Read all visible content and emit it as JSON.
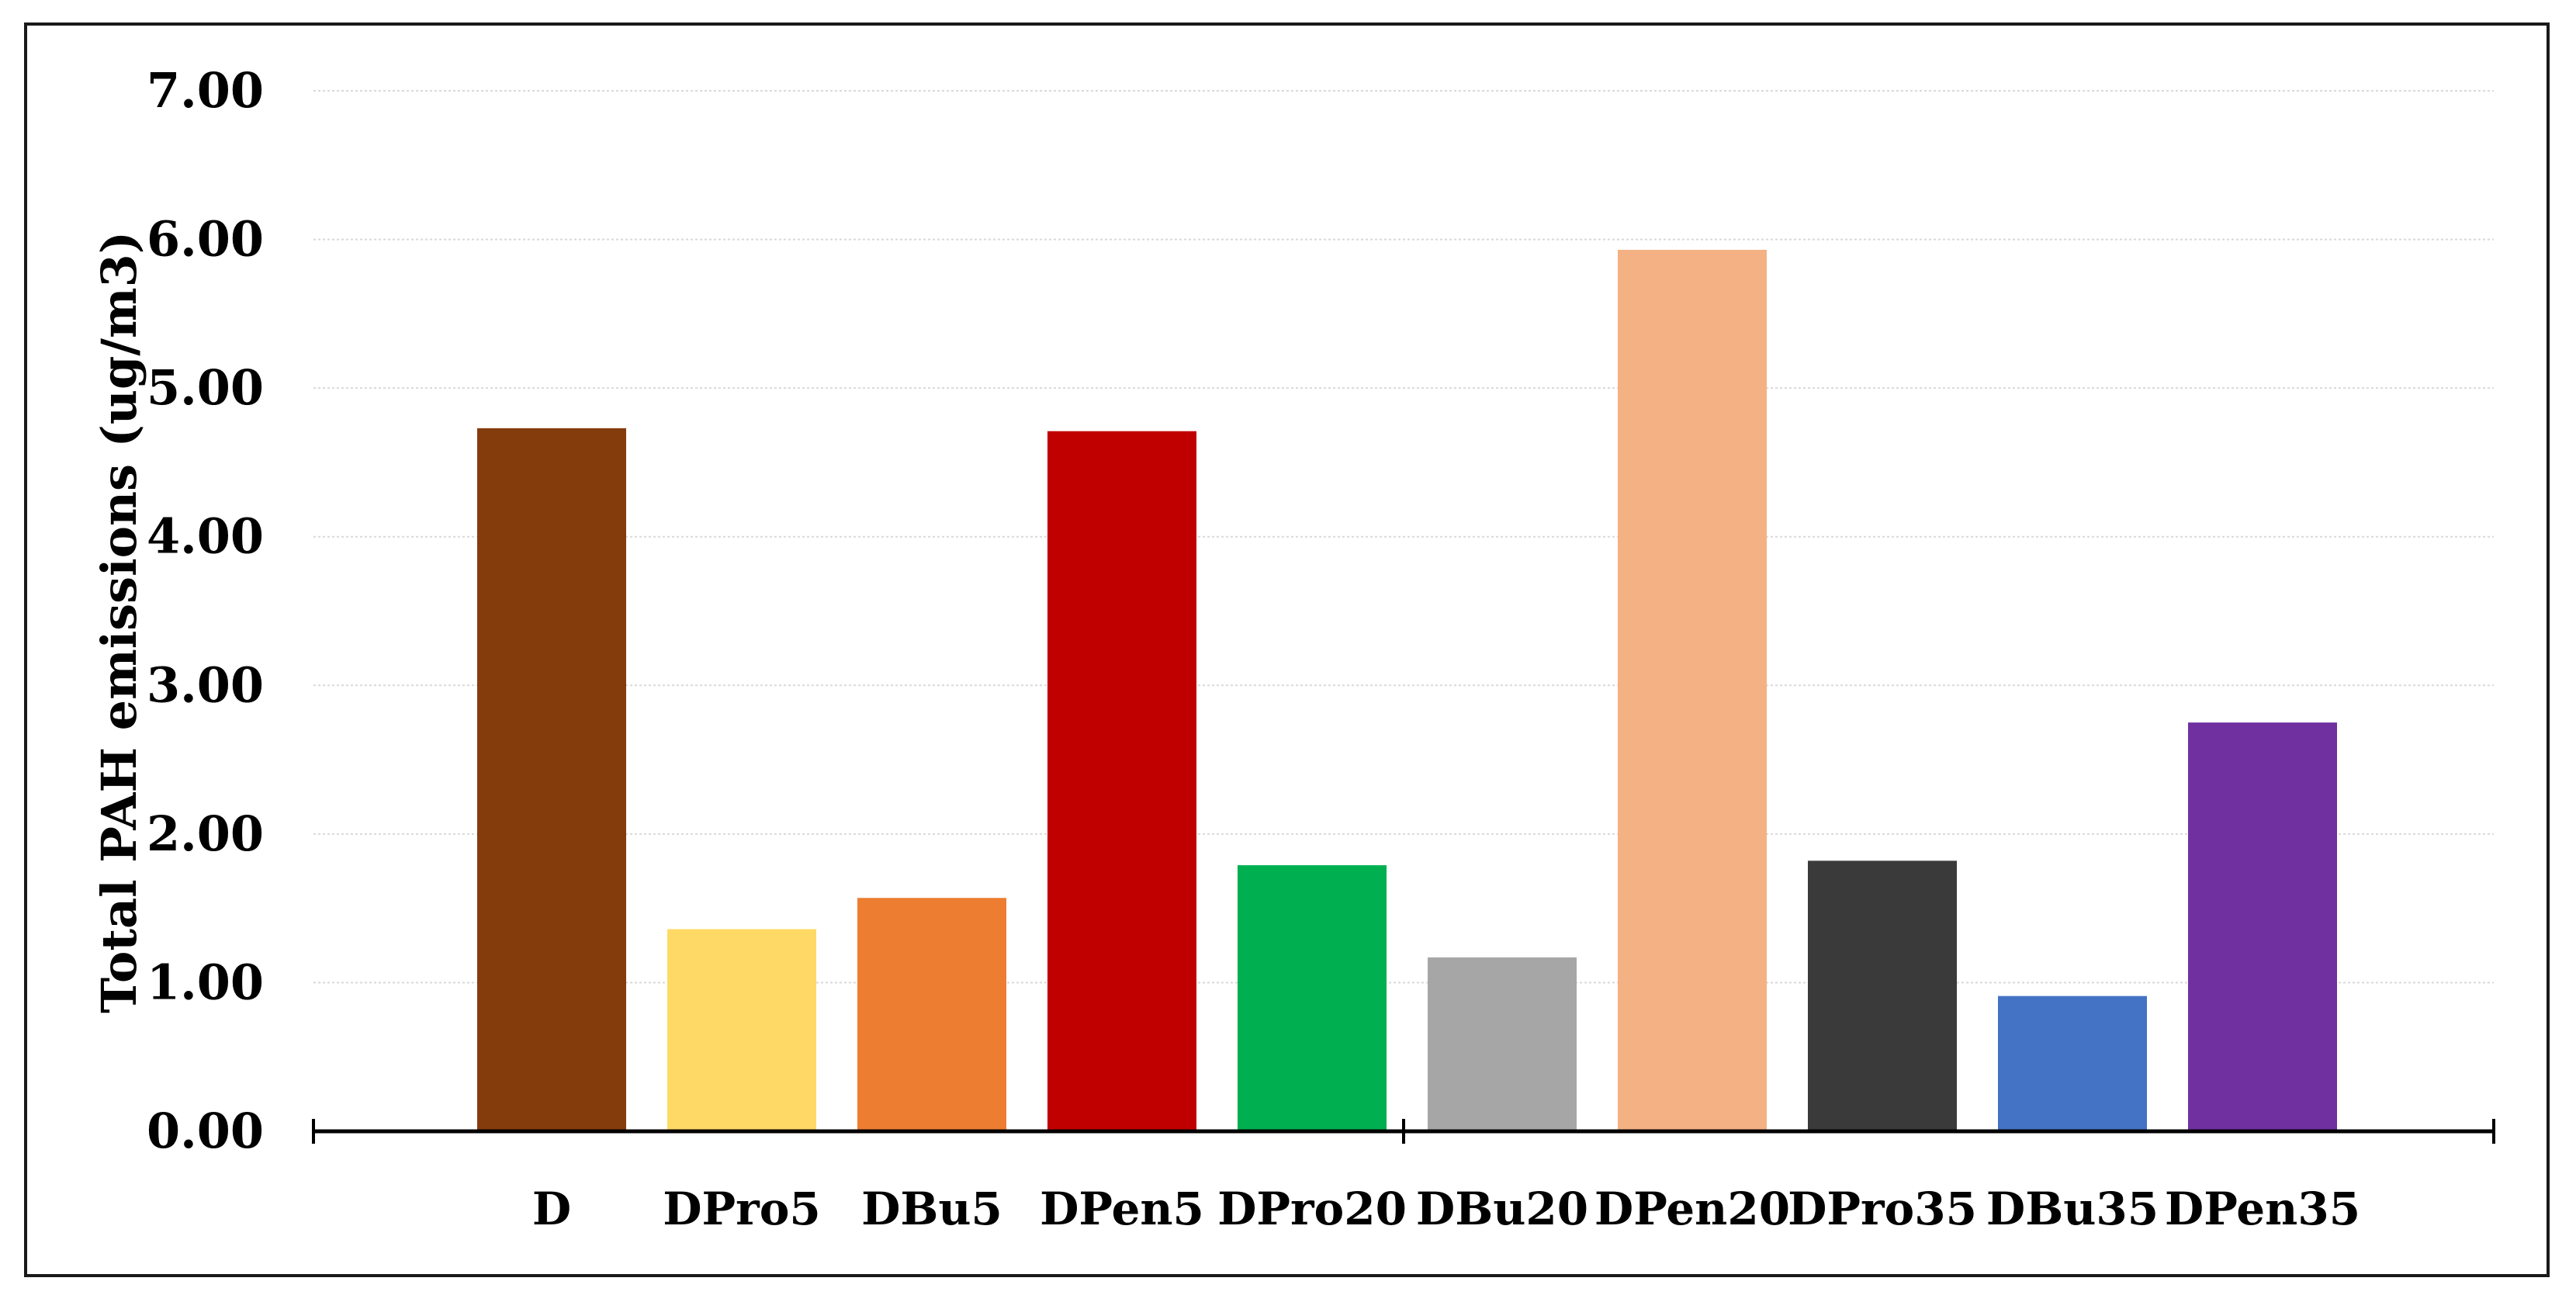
{
  "chart_data": {
    "type": "bar",
    "title": "",
    "xlabel": "",
    "ylabel": "Total PAH emissions (ug/m3)",
    "ylim": [
      0,
      7
    ],
    "yticks": [
      "0.00",
      "1.00",
      "2.00",
      "3.00",
      "4.00",
      "5.00",
      "6.00",
      "7.00"
    ],
    "grid": true,
    "legend": "none",
    "categories": [
      "D",
      "DPro5",
      "DBu5",
      "DPen5",
      "DPro20",
      "DBu20",
      "DPen20",
      "DPro35",
      "DBu35",
      "DPen35"
    ],
    "values": [
      4.73,
      1.36,
      1.57,
      4.71,
      1.79,
      1.17,
      5.93,
      1.82,
      0.91,
      2.75
    ],
    "colors": [
      "#843c0c",
      "#ffd966",
      "#ed7d31",
      "#c00000",
      "#00b050",
      "#a6a6a6",
      "#f4b183",
      "#3a3a3a",
      "#4472c4",
      "#7030a0"
    ]
  }
}
